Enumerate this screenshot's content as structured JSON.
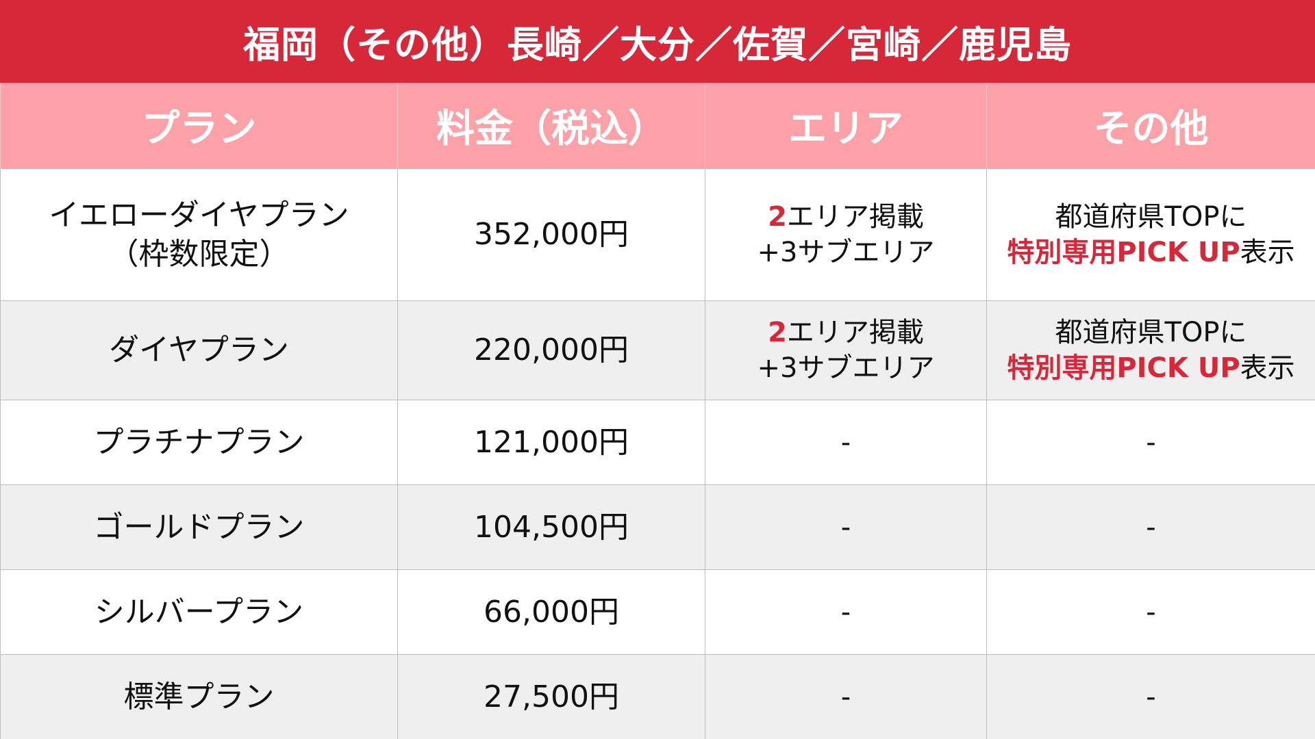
{
  "table": {
    "title": "福岡（その他）長崎／大分／佐賀／宮崎／鹿児島",
    "header": [
      "プラン",
      "料金（税込）",
      "エリア",
      "その他"
    ],
    "rows": [
      {
        "plan": [
          "イエローダイヤプラン",
          "（枠数限定）"
        ],
        "price": "352,000円",
        "area": [
          [
            {
              "text": "2",
              "em": true
            },
            {
              "text": "エリア掲載"
            }
          ],
          [
            {
              "text": "+3サブエリア"
            }
          ]
        ],
        "other": [
          [
            {
              "text": "都道府県TOPに"
            }
          ],
          [
            {
              "text": "特別専用PICK UP",
              "em": true
            },
            {
              "text": "表示"
            }
          ]
        ]
      },
      {
        "plan": [
          "ダイヤプラン"
        ],
        "price": "220,000円",
        "area": [
          [
            {
              "text": "2",
              "em": true
            },
            {
              "text": "エリア掲載"
            }
          ],
          [
            {
              "text": "+3サブエリア"
            }
          ]
        ],
        "other": [
          [
            {
              "text": "都道府県TOPに"
            }
          ],
          [
            {
              "text": "特別専用PICK UP",
              "em": true
            },
            {
              "text": "表示"
            }
          ]
        ]
      },
      {
        "plan": [
          "プラチナプラン"
        ],
        "price": "121,000円",
        "area": [
          [
            {
              "text": "-"
            }
          ]
        ],
        "other": [
          [
            {
              "text": "-"
            }
          ]
        ]
      },
      {
        "plan": [
          "ゴールドプラン"
        ],
        "price": "104,500円",
        "area": [
          [
            {
              "text": "-"
            }
          ]
        ],
        "other": [
          [
            {
              "text": "-"
            }
          ]
        ]
      },
      {
        "plan": [
          "シルバープラン"
        ],
        "price": "66,000円",
        "area": [
          [
            {
              "text": "-"
            }
          ]
        ],
        "other": [
          [
            {
              "text": "-"
            }
          ]
        ]
      },
      {
        "plan": [
          "標準プラン"
        ],
        "price": "27,500円",
        "area": [
          [
            {
              "text": "-"
            }
          ]
        ],
        "other": [
          [
            {
              "text": "-"
            }
          ]
        ]
      }
    ]
  }
}
